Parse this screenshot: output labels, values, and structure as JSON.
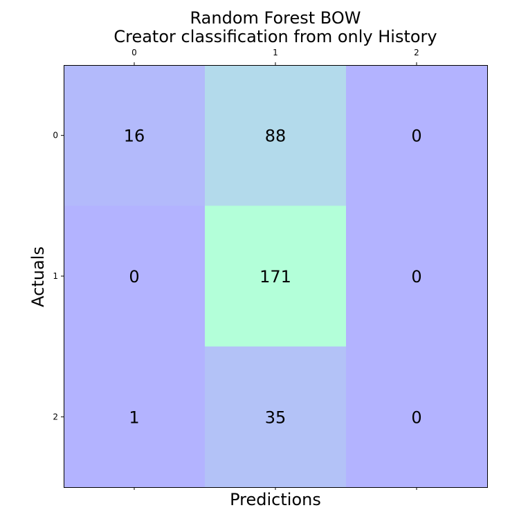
{
  "chart_data": {
    "type": "heatmap",
    "title": [
      "Random Forest BOW",
      "Creator classification from only History"
    ],
    "xlabel": "Predictions",
    "ylabel": "Actuals",
    "x_ticks": [
      "0",
      "1",
      "2"
    ],
    "y_ticks": [
      "0",
      "1",
      "2"
    ],
    "x_tick_position": "top",
    "matrix": [
      [
        16,
        88,
        0
      ],
      [
        0,
        171,
        0
      ],
      [
        1,
        35,
        0
      ]
    ],
    "colormap": "winter",
    "cell_alpha": 0.3,
    "grid": false
  }
}
